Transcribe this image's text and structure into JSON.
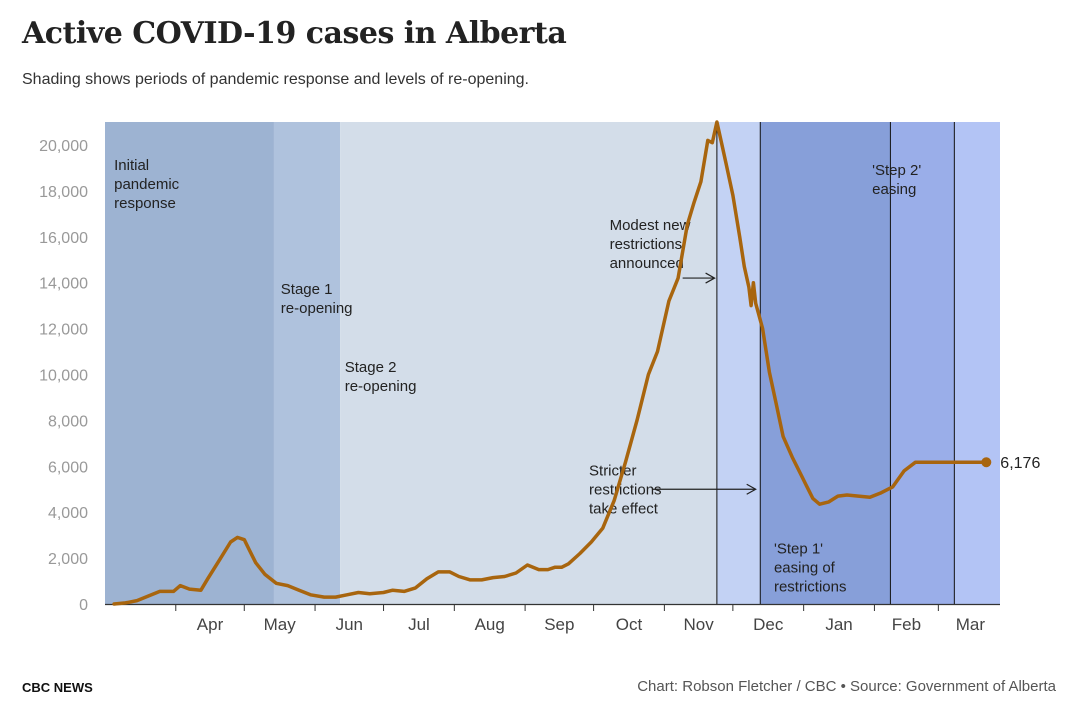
{
  "header": {
    "title": "Active COVID-19 cases in Alberta",
    "subtitle": "Shading shows periods of pandemic response and levels of re-opening."
  },
  "footer": {
    "brand": "CBC NEWS",
    "credit": "Chart: Robson Fletcher / CBC • Source: Government of Alberta"
  },
  "colors": {
    "line": "#a8650e",
    "initial_response": "#9db3d2",
    "stage1": "#afc2dd",
    "stage2": "#d3dde9",
    "modest_restrictions": "#c3d2f4",
    "stricter_restrictions": "#879fd9",
    "step1": "#9aaee9",
    "step2": "#b3c4f5"
  },
  "chart_data": {
    "type": "line",
    "x_unit": "date",
    "xlim": [
      "2020-03-01",
      "2021-03-28"
    ],
    "ylim": [
      0,
      21000
    ],
    "y_ticks": [
      0,
      2000,
      4000,
      6000,
      8000,
      10000,
      12000,
      14000,
      16000,
      18000,
      20000
    ],
    "y_tick_labels": [
      "0",
      "2,000",
      "4,000",
      "6,000",
      "8,000",
      "10,000",
      "12,000",
      "14,000",
      "16,000",
      "18,000",
      "20,000"
    ],
    "x_ticks": [
      "2020-04-01",
      "2020-05-01",
      "2020-06-01",
      "2020-07-01",
      "2020-08-01",
      "2020-09-01",
      "2020-10-01",
      "2020-11-01",
      "2020-12-01",
      "2021-01-01",
      "2021-02-01",
      "2021-03-01"
    ],
    "x_tick_labels": [
      "Apr",
      "May",
      "Jun",
      "Jul",
      "Aug",
      "Sep",
      "Oct",
      "Nov",
      "Dec",
      "Jan",
      "Feb",
      "Mar"
    ],
    "grid": false,
    "periods": [
      {
        "start": "2020-03-01",
        "end": "2020-05-14",
        "label": "Initial pandemic response",
        "color_key": "initial_response"
      },
      {
        "start": "2020-05-14",
        "end": "2020-06-12",
        "label": "Stage 1 re-opening",
        "color_key": "stage1"
      },
      {
        "start": "2020-06-12",
        "end": "2020-11-24",
        "label": "Stage 2 re-opening",
        "color_key": "stage2"
      },
      {
        "start": "2020-11-24",
        "end": "2020-12-13",
        "label": "Modest new restrictions announced",
        "color_key": "modest_restrictions"
      },
      {
        "start": "2020-12-13",
        "end": "2021-02-08",
        "label": "Stricter restrictions take effect",
        "color_key": "stricter_restrictions"
      },
      {
        "start": "2021-02-08",
        "end": "2021-03-08",
        "label": "'Step 1' easing of restrictions",
        "color_key": "step1"
      },
      {
        "start": "2021-03-08",
        "end": "2021-03-28",
        "label": "'Step 2' easing",
        "color_key": "step2"
      }
    ],
    "period_lines": [
      "2020-11-24",
      "2020-12-13",
      "2021-02-08",
      "2021-03-08"
    ],
    "annotations": [
      {
        "id": "initial",
        "lines": [
          "Initial",
          "pandemic",
          "response"
        ],
        "date": "2020-03-05",
        "y": 18900
      },
      {
        "id": "stage1",
        "lines": [
          "Stage 1",
          "re-opening"
        ],
        "date": "2020-05-17",
        "y": 13500
      },
      {
        "id": "stage2",
        "lines": [
          "Stage 2",
          "re-opening"
        ],
        "date": "2020-06-14",
        "y": 10100
      },
      {
        "id": "modest",
        "lines": [
          "Modest new",
          "restrictions",
          "announced"
        ],
        "date": "2020-10-08",
        "y": 16300
      },
      {
        "id": "stricter",
        "lines": [
          "Stricter",
          "restrictions",
          "take effect"
        ],
        "date": "2020-09-29",
        "y": 5600
      },
      {
        "id": "step1",
        "lines": [
          "'Step 1'",
          "easing of",
          "restrictions"
        ],
        "date": "2020-12-19",
        "y": 2200
      },
      {
        "id": "step2",
        "lines": [
          "'Step 2'",
          "easing"
        ],
        "date": "2021-01-31",
        "y": 18700
      }
    ],
    "arrows": [
      {
        "id": "modest-arrow",
        "from_date": "2020-11-09",
        "to_date": "2020-11-23",
        "y": 14200
      },
      {
        "id": "stricter-arrow",
        "from_date": "2020-10-27",
        "to_date": "2020-12-11",
        "y": 5000
      }
    ],
    "end_label": "6,176",
    "series": [
      {
        "dates": [
          "2020-03-05",
          "2020-03-10",
          "2020-03-15",
          "2020-03-20",
          "2020-03-25",
          "2020-03-31",
          "2020-04-03",
          "2020-04-07",
          "2020-04-12",
          "2020-04-15",
          "2020-04-20",
          "2020-04-25",
          "2020-04-28",
          "2020-05-01",
          "2020-05-03",
          "2020-05-06",
          "2020-05-10",
          "2020-05-15",
          "2020-05-20",
          "2020-05-25",
          "2020-05-30",
          "2020-06-05",
          "2020-06-10",
          "2020-06-15",
          "2020-06-20",
          "2020-06-25",
          "2020-07-01",
          "2020-07-05",
          "2020-07-10",
          "2020-07-15",
          "2020-07-20",
          "2020-07-25",
          "2020-07-30",
          "2020-08-03",
          "2020-08-08",
          "2020-08-13",
          "2020-08-18",
          "2020-08-23",
          "2020-08-28",
          "2020-09-02",
          "2020-09-07",
          "2020-09-11",
          "2020-09-14",
          "2020-09-17",
          "2020-09-20",
          "2020-09-25",
          "2020-09-30",
          "2020-10-05",
          "2020-10-10",
          "2020-10-15",
          "2020-10-20",
          "2020-10-25",
          "2020-10-29",
          "2020-11-03",
          "2020-11-07",
          "2020-11-11",
          "2020-11-14",
          "2020-11-17",
          "2020-11-20",
          "2020-11-22",
          "2020-11-24",
          "2020-11-26",
          "2020-11-28",
          "2020-12-01",
          "2020-12-04",
          "2020-12-06",
          "2020-12-08",
          "2020-12-09",
          "2020-12-10",
          "2020-12-11",
          "2020-12-14",
          "2020-12-17",
          "2020-12-20",
          "2020-12-23",
          "2020-12-27",
          "2020-12-31",
          "2021-01-02",
          "2021-01-03",
          "2021-01-05",
          "2021-01-08",
          "2021-01-12",
          "2021-01-16",
          "2021-01-20",
          "2021-01-25",
          "2021-01-30",
          "2021-02-04",
          "2021-02-09",
          "2021-02-14",
          "2021-02-19",
          "2021-02-24",
          "2021-03-01",
          "2021-03-05",
          "2021-03-09",
          "2021-03-13",
          "2021-03-17",
          "2021-03-20",
          "2021-03-22"
        ],
        "values": [
          0,
          50,
          150,
          350,
          550,
          550,
          800,
          650,
          600,
          1100,
          1900,
          2700,
          2900,
          2800,
          2400,
          1800,
          1300,
          900,
          800,
          600,
          400,
          300,
          300,
          400,
          500,
          450,
          500,
          600,
          550,
          700,
          1100,
          1400,
          1400,
          1200,
          1050,
          1050,
          1150,
          1200,
          1350,
          1700,
          1500,
          1500,
          1600,
          1600,
          1750,
          2200,
          2700,
          3300,
          4500,
          6200,
          8000,
          10000,
          11000,
          13200,
          14200,
          16500,
          17500,
          18400,
          20200,
          20100,
          21000,
          20100,
          19200,
          17800,
          16000,
          14700,
          13800,
          13000,
          14000,
          13100,
          12000,
          10100,
          8700,
          7300,
          6400,
          5600,
          5200,
          5000,
          4600,
          4350,
          4450,
          4700,
          4750,
          4700,
          4650,
          4850,
          5100,
          5800,
          6176,
          6176,
          6176,
          6176,
          6176,
          6176,
          6176,
          6176,
          6176
        ]
      }
    ]
  }
}
